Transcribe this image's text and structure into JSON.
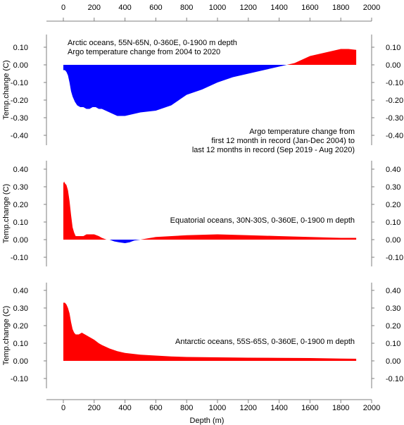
{
  "figure": {
    "xlabel": "Depth (m)",
    "annotation_lines": [
      "Argo temperature change from",
      "first 12 month in record (Jan-Dec 2004) to",
      "last 12 months in record (Sep 2019 - Aug 2020)"
    ],
    "colors": {
      "positive": "#ff0000",
      "negative": "#0000ff",
      "axis": "#7f7f7f"
    }
  },
  "chart_data": [
    {
      "type": "area",
      "title_lines": [
        "Arctic oceans, 55N-65N, 0-360E, 0-1900 m depth",
        "Argo temperature change from 2004 to 2020"
      ],
      "xlabel": "",
      "ylabel": "Temp.change (C)",
      "xlim": [
        0,
        2000
      ],
      "ylim": [
        -0.45,
        0.13
      ],
      "xticks": [
        "0",
        "200",
        "400",
        "600",
        "800",
        "1000",
        "1200",
        "1400",
        "1600",
        "1800",
        "2000"
      ],
      "yticks_left": [
        "0.10",
        "0.00",
        "-0.10",
        "-0.20",
        "-0.30",
        "-0.40"
      ],
      "yticks_right": [
        "0.10",
        "0.00",
        "-0.10",
        "-0.20",
        "-0.30",
        "-0.40"
      ],
      "x": [
        0,
        10,
        20,
        30,
        40,
        50,
        60,
        75,
        90,
        110,
        130,
        150,
        170,
        190,
        210,
        230,
        250,
        275,
        300,
        350,
        400,
        450,
        500,
        600,
        700,
        800,
        900,
        1000,
        1100,
        1200,
        1300,
        1400,
        1450,
        1500,
        1550,
        1600,
        1650,
        1700,
        1750,
        1800,
        1850,
        1900
      ],
      "values": [
        -0.03,
        -0.03,
        -0.04,
        -0.06,
        -0.1,
        -0.15,
        -0.18,
        -0.21,
        -0.23,
        -0.24,
        -0.24,
        -0.25,
        -0.25,
        -0.24,
        -0.24,
        -0.25,
        -0.25,
        -0.26,
        -0.27,
        -0.29,
        -0.29,
        -0.28,
        -0.27,
        -0.26,
        -0.23,
        -0.17,
        -0.14,
        -0.1,
        -0.07,
        -0.05,
        -0.03,
        -0.01,
        0.0,
        0.01,
        0.03,
        0.05,
        0.06,
        0.07,
        0.08,
        0.09,
        0.09,
        0.085
      ]
    },
    {
      "type": "area",
      "title_lines": [
        "Equatorial oceans, 30N-30S, 0-360E, 0-1900 m depth"
      ],
      "xlabel": "",
      "ylabel": "Temp.change (C)",
      "xlim": [
        0,
        2000
      ],
      "ylim": [
        -0.14,
        0.45
      ],
      "xticks": [
        "0",
        "200",
        "400",
        "600",
        "800",
        "1000",
        "1200",
        "1400",
        "1600",
        "1800",
        "2000"
      ],
      "yticks_left": [
        "0.40",
        "0.30",
        "0.20",
        "0.10",
        "0.00",
        "-0.10"
      ],
      "yticks_right": [
        "0.40",
        "0.30",
        "0.20",
        "0.10",
        "0.00",
        "-0.10"
      ],
      "x": [
        0,
        5,
        10,
        20,
        30,
        40,
        50,
        60,
        70,
        80,
        90,
        100,
        110,
        130,
        150,
        170,
        200,
        230,
        250,
        280,
        300,
        330,
        360,
        400,
        430,
        460,
        500,
        600,
        800,
        1000,
        1200,
        1400,
        1600,
        1800,
        1900
      ],
      "values": [
        0.32,
        0.33,
        0.32,
        0.31,
        0.28,
        0.22,
        0.14,
        0.07,
        0.04,
        0.02,
        0.02,
        0.02,
        0.02,
        0.02,
        0.03,
        0.03,
        0.03,
        0.02,
        0.01,
        0.0,
        0.0,
        -0.01,
        -0.015,
        -0.02,
        -0.015,
        -0.005,
        0.0,
        0.015,
        0.025,
        0.03,
        0.025,
        0.02,
        0.015,
        0.01,
        0.01
      ]
    },
    {
      "type": "area",
      "title_lines": [
        "Antarctic oceans, 55S-65S, 0-360E, 0-1900 m depth"
      ],
      "xlabel": "Depth (m)",
      "ylabel": "Temp.change (C)",
      "xlim": [
        0,
        2000
      ],
      "ylim": [
        -0.14,
        0.45
      ],
      "xticks": [
        "0",
        "200",
        "400",
        "600",
        "800",
        "1000",
        "1200",
        "1400",
        "1600",
        "1800",
        "2000"
      ],
      "yticks_left": [
        "0.40",
        "0.30",
        "0.20",
        "0.10",
        "0.00",
        "-0.10"
      ],
      "yticks_right": [
        "0.40",
        "0.30",
        "0.20",
        "0.10",
        "0.00",
        "-0.10"
      ],
      "x": [
        0,
        10,
        20,
        30,
        40,
        50,
        60,
        70,
        80,
        90,
        100,
        120,
        140,
        160,
        180,
        200,
        230,
        250,
        300,
        350,
        400,
        450,
        500,
        600,
        700,
        800,
        1000,
        1200,
        1400,
        1600,
        1800,
        1900
      ],
      "values": [
        0.33,
        0.33,
        0.32,
        0.3,
        0.27,
        0.22,
        0.18,
        0.16,
        0.15,
        0.15,
        0.15,
        0.16,
        0.15,
        0.14,
        0.13,
        0.12,
        0.1,
        0.09,
        0.07,
        0.055,
        0.045,
        0.04,
        0.035,
        0.03,
        0.025,
        0.022,
        0.02,
        0.018,
        0.017,
        0.016,
        0.013,
        0.012
      ]
    }
  ]
}
